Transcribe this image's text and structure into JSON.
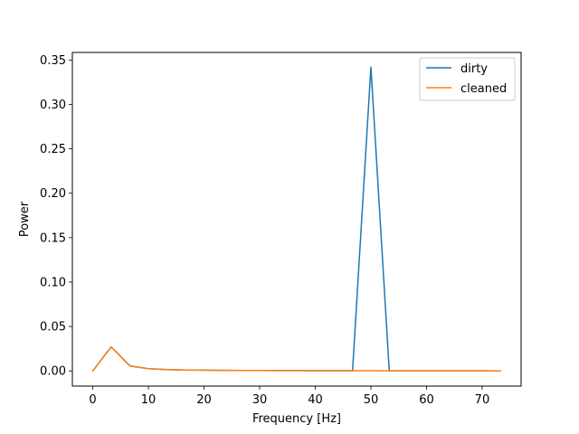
{
  "chart_data": {
    "type": "line",
    "title": "",
    "xlabel": "Frequency [Hz]",
    "ylabel": "Power",
    "xlim": [
      -3.67,
      77.0
    ],
    "ylim": [
      -0.0171,
      0.3585
    ],
    "xticks": [
      0,
      10,
      20,
      30,
      40,
      50,
      60,
      70
    ],
    "xtick_labels": [
      "0",
      "10",
      "20",
      "30",
      "40",
      "50",
      "60",
      "70"
    ],
    "yticks": [
      0.0,
      0.05,
      0.1,
      0.15,
      0.2,
      0.25,
      0.3,
      0.35
    ],
    "ytick_labels": [
      "0.00",
      "0.05",
      "0.10",
      "0.15",
      "0.20",
      "0.25",
      "0.30",
      "0.35"
    ],
    "grid": false,
    "legend_position": "upper right",
    "series": [
      {
        "name": "dirty",
        "color": "#1f77b4",
        "x": [
          0,
          3.3,
          6.7,
          10.0,
          13.3,
          16.7,
          20.0,
          23.3,
          26.7,
          30.0,
          33.3,
          36.7,
          40.0,
          43.3,
          46.7,
          50.0,
          53.3,
          56.7,
          60.0,
          63.3,
          66.7,
          70.0,
          73.3
        ],
        "y": [
          0.0,
          0.027,
          0.0055,
          0.0025,
          0.0015,
          0.001,
          0.0008,
          0.0006,
          0.0005,
          0.0004,
          0.0003,
          0.0003,
          0.0002,
          0.0002,
          0.0002,
          0.342,
          0.0001,
          0.0001,
          0.0001,
          0.0001,
          0.0001,
          0.0001,
          0.0
        ]
      },
      {
        "name": "cleaned",
        "color": "#ff7f0e",
        "x": [
          0,
          3.3,
          6.7,
          10.0,
          13.3,
          16.7,
          20.0,
          23.3,
          26.7,
          30.0,
          33.3,
          36.7,
          40.0,
          43.3,
          46.7,
          50.0,
          53.3,
          56.7,
          60.0,
          63.3,
          66.7,
          70.0,
          73.3
        ],
        "y": [
          0.0,
          0.027,
          0.0055,
          0.0025,
          0.0015,
          0.001,
          0.0008,
          0.0006,
          0.0005,
          0.0004,
          0.0003,
          0.0003,
          0.0002,
          0.0002,
          0.0002,
          0.0002,
          0.0001,
          0.0001,
          0.0001,
          0.0001,
          0.0001,
          0.0001,
          0.0
        ]
      }
    ]
  }
}
